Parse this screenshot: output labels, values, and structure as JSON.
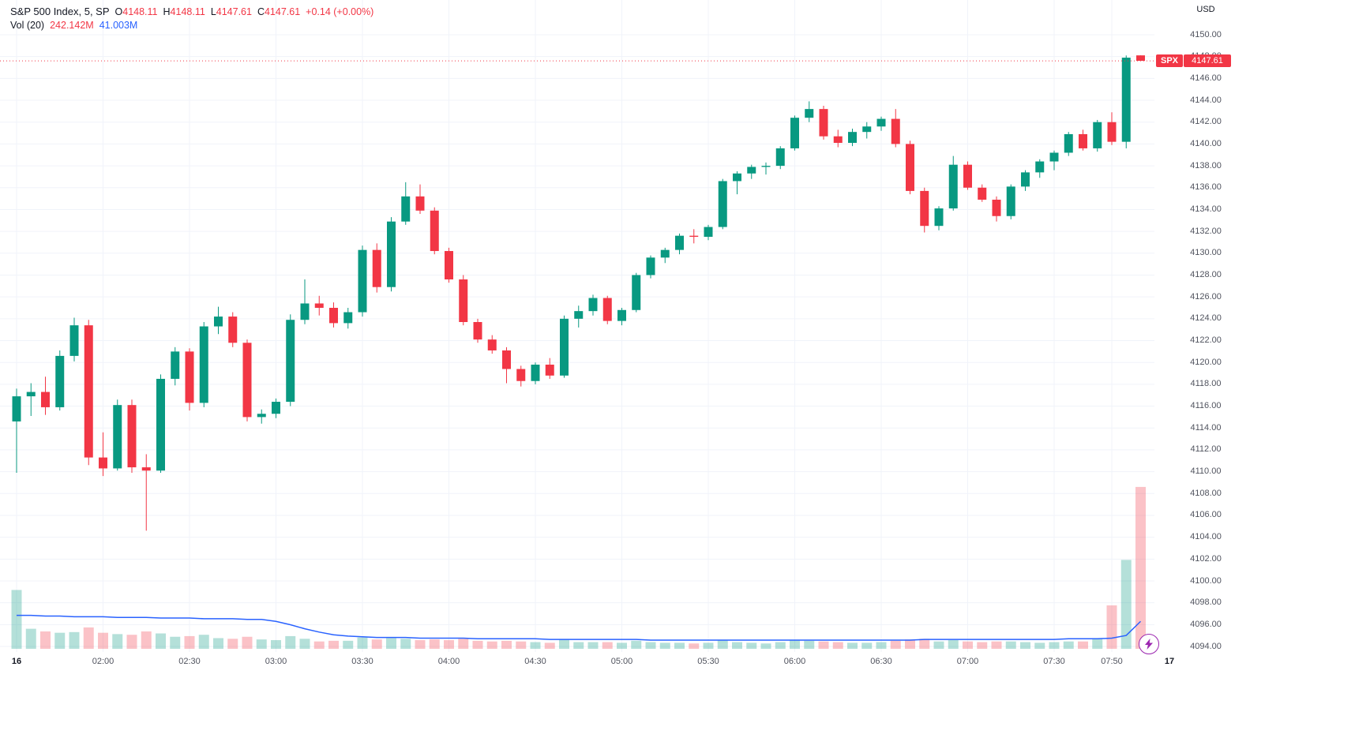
{
  "legend": {
    "title": "S&P 500 Index, 5, SP",
    "open_label": "O",
    "open": "4148.11",
    "high_label": "H",
    "high": "4148.11",
    "low_label": "L",
    "low": "4147.61",
    "close_label": "C",
    "close": "4147.61",
    "change": "+0.14 (+0.00%)",
    "vol_label": "Vol (20)",
    "vol_value": "242.142M",
    "vol_ma_value": "41.003M"
  },
  "badge": {
    "symbol": "SPX",
    "price": "4147.61"
  },
  "axis": {
    "currency": "USD"
  },
  "icons": {
    "flash": "lightning-bolt"
  },
  "colors": {
    "up": "#089981",
    "down": "#f23645",
    "vol_up": "rgba(8,153,129,0.30)",
    "vol_down": "rgba(242,54,69,0.30)",
    "ma_line": "#2962ff",
    "grid": "#f0f3fa",
    "axis_border": "#e0e3eb",
    "badge_bg": "#f23645",
    "accent_purple": "#9c27b0",
    "text_dark": "#131722",
    "text_axis": "#50535e"
  },
  "chart_data": {
    "type": "candlestick",
    "symbol": "S&P 500 Index",
    "interval": "5",
    "exchange": "SP",
    "currency": "USD",
    "last_price": 4147.61,
    "change": "+0.14 (+0.00%)",
    "current_volume_m": 242.142,
    "volume_ma20_current_m": 41.003,
    "y_axis": {
      "min": 4094,
      "max": 4150,
      "step": 2
    },
    "x_tick_labels": [
      "16",
      "02:00",
      "02:30",
      "03:00",
      "03:30",
      "04:00",
      "04:30",
      "05:00",
      "05:30",
      "06:00",
      "06:30",
      "07:00",
      "07:30",
      "07:50",
      "17"
    ],
    "x_ticks": [
      {
        "label": "16",
        "i": 0,
        "day": true
      },
      {
        "label": "02:00",
        "i": 6
      },
      {
        "label": "02:30",
        "i": 12
      },
      {
        "label": "03:00",
        "i": 18
      },
      {
        "label": "03:30",
        "i": 24
      },
      {
        "label": "04:00",
        "i": 30
      },
      {
        "label": "04:30",
        "i": 36
      },
      {
        "label": "05:00",
        "i": 42
      },
      {
        "label": "05:30",
        "i": 48
      },
      {
        "label": "06:00",
        "i": 54
      },
      {
        "label": "06:30",
        "i": 60
      },
      {
        "label": "07:00",
        "i": 66
      },
      {
        "label": "07:30",
        "i": 72
      },
      {
        "label": "07:50",
        "i": 76
      },
      {
        "label": "17",
        "i": 80,
        "day": true
      }
    ],
    "columns": [
      "time",
      "open",
      "high",
      "low",
      "close",
      "volume_m"
    ],
    "candles": [
      [
        "01:30",
        4114.6,
        4117.6,
        4109.9,
        4116.9,
        88
      ],
      [
        "01:35",
        4116.9,
        4118.1,
        4115.1,
        4117.3,
        30
      ],
      [
        "01:40",
        4117.3,
        4118.7,
        4115.2,
        4115.9,
        26
      ],
      [
        "01:45",
        4115.9,
        4121.1,
        4115.6,
        4120.6,
        24
      ],
      [
        "01:50",
        4120.6,
        4124.1,
        4120.1,
        4123.4,
        25
      ],
      [
        "01:55",
        4123.4,
        4123.9,
        4110.6,
        4111.3,
        32
      ],
      [
        "02:00",
        4111.3,
        4113.6,
        4109.6,
        4110.3,
        24
      ],
      [
        "02:05",
        4110.3,
        4116.6,
        4110.1,
        4116.1,
        22
      ],
      [
        "02:10",
        4116.1,
        4116.6,
        4109.9,
        4110.4,
        21
      ],
      [
        "02:15",
        4110.4,
        4111.6,
        4104.6,
        4110.1,
        26
      ],
      [
        "02:20",
        4110.1,
        4118.9,
        4109.9,
        4118.5,
        23
      ],
      [
        "02:25",
        4118.5,
        4121.4,
        4117.9,
        4121.0,
        18
      ],
      [
        "02:30",
        4121.0,
        4121.3,
        4115.6,
        4116.3,
        19
      ],
      [
        "02:35",
        4116.3,
        4123.7,
        4115.9,
        4123.3,
        21
      ],
      [
        "02:40",
        4123.3,
        4125.1,
        4122.6,
        4124.2,
        16
      ],
      [
        "02:45",
        4124.2,
        4124.6,
        4121.4,
        4121.8,
        15
      ],
      [
        "02:50",
        4121.8,
        4122.1,
        4114.6,
        4115.0,
        18
      ],
      [
        "02:55",
        4115.0,
        4115.7,
        4114.4,
        4115.3,
        14
      ],
      [
        "03:00",
        4115.3,
        4116.7,
        4114.9,
        4116.4,
        13
      ],
      [
        "03:05",
        4116.4,
        4124.4,
        4116.0,
        4123.9,
        19
      ],
      [
        "03:10",
        4123.9,
        4127.6,
        4123.5,
        4125.4,
        15
      ],
      [
        "03:15",
        4125.4,
        4126.1,
        4124.3,
        4125.0,
        11
      ],
      [
        "03:20",
        4125.0,
        4125.5,
        4123.2,
        4123.6,
        12
      ],
      [
        "03:25",
        4123.6,
        4125.0,
        4123.1,
        4124.6,
        12
      ],
      [
        "03:30",
        4124.6,
        4130.7,
        4124.2,
        4130.3,
        17
      ],
      [
        "03:35",
        4130.3,
        4130.9,
        4126.4,
        4126.9,
        14
      ],
      [
        "03:40",
        4126.9,
        4133.3,
        4126.5,
        4132.9,
        16
      ],
      [
        "03:45",
        4132.9,
        4136.5,
        4132.6,
        4135.2,
        15
      ],
      [
        "03:50",
        4135.2,
        4136.3,
        4133.6,
        4133.9,
        13
      ],
      [
        "03:55",
        4133.9,
        4134.2,
        4129.9,
        4130.2,
        14
      ],
      [
        "04:00",
        4130.2,
        4130.5,
        4127.3,
        4127.6,
        13
      ],
      [
        "04:05",
        4127.6,
        4128.0,
        4123.4,
        4123.7,
        15
      ],
      [
        "04:10",
        4123.7,
        4124.0,
        4121.8,
        4122.1,
        12
      ],
      [
        "04:15",
        4122.1,
        4122.5,
        4120.8,
        4121.1,
        11
      ],
      [
        "04:20",
        4121.1,
        4121.4,
        4118.1,
        4119.4,
        12
      ],
      [
        "04:25",
        4119.4,
        4119.7,
        4117.8,
        4118.3,
        11
      ],
      [
        "04:30",
        4118.3,
        4120.0,
        4118.0,
        4119.8,
        10
      ],
      [
        "04:35",
        4119.8,
        4120.4,
        4118.5,
        4118.8,
        9
      ],
      [
        "04:40",
        4118.8,
        4124.3,
        4118.6,
        4124.0,
        14
      ],
      [
        "04:45",
        4124.0,
        4125.2,
        4123.2,
        4124.7,
        10
      ],
      [
        "04:50",
        4124.7,
        4126.2,
        4124.3,
        4125.9,
        10
      ],
      [
        "04:55",
        4125.9,
        4126.1,
        4123.5,
        4123.8,
        10
      ],
      [
        "05:00",
        4123.8,
        4125.0,
        4123.4,
        4124.8,
        9
      ],
      [
        "05:05",
        4124.8,
        4128.2,
        4124.6,
        4128.0,
        12
      ],
      [
        "05:10",
        4128.0,
        4129.8,
        4127.7,
        4129.6,
        10
      ],
      [
        "05:15",
        4129.6,
        4130.5,
        4129.1,
        4130.3,
        9
      ],
      [
        "05:20",
        4130.3,
        4131.8,
        4129.9,
        4131.6,
        9
      ],
      [
        "05:25",
        4131.6,
        4132.2,
        4130.9,
        4131.5,
        8
      ],
      [
        "05:30",
        4131.5,
        4132.6,
        4131.2,
        4132.4,
        9
      ],
      [
        "05:35",
        4132.4,
        4136.8,
        4132.2,
        4136.6,
        13
      ],
      [
        "05:40",
        4136.6,
        4137.5,
        4135.4,
        4137.3,
        10
      ],
      [
        "05:45",
        4137.3,
        4138.1,
        4136.8,
        4137.9,
        9
      ],
      [
        "05:50",
        4137.9,
        4138.3,
        4137.2,
        4138.0,
        8
      ],
      [
        "05:55",
        4138.0,
        4139.8,
        4137.7,
        4139.6,
        10
      ],
      [
        "06:00",
        4139.6,
        4142.6,
        4139.4,
        4142.4,
        13
      ],
      [
        "06:05",
        4142.4,
        4143.9,
        4142.0,
        4143.2,
        12
      ],
      [
        "06:10",
        4143.2,
        4143.5,
        4140.4,
        4140.7,
        11
      ],
      [
        "06:15",
        4140.7,
        4141.3,
        4139.7,
        4140.1,
        10
      ],
      [
        "06:20",
        4140.1,
        4141.4,
        4139.8,
        4141.1,
        9
      ],
      [
        "06:25",
        4141.1,
        4142.0,
        4140.5,
        4141.6,
        9
      ],
      [
        "06:30",
        4141.6,
        4142.5,
        4141.2,
        4142.3,
        10
      ],
      [
        "06:35",
        4142.3,
        4143.2,
        4139.7,
        4140.0,
        12
      ],
      [
        "06:40",
        4140.0,
        4140.3,
        4135.4,
        4135.7,
        14
      ],
      [
        "06:45",
        4135.7,
        4136.0,
        4131.9,
        4132.5,
        15
      ],
      [
        "06:50",
        4132.5,
        4134.3,
        4132.1,
        4134.1,
        11
      ],
      [
        "06:55",
        4134.1,
        4138.9,
        4133.9,
        4138.1,
        13
      ],
      [
        "07:00",
        4138.1,
        4138.4,
        4135.8,
        4136.0,
        11
      ],
      [
        "07:05",
        4136.0,
        4136.3,
        4134.7,
        4134.9,
        10
      ],
      [
        "07:10",
        4134.9,
        4135.2,
        4132.9,
        4133.4,
        11
      ],
      [
        "07:15",
        4133.4,
        4136.3,
        4133.1,
        4136.1,
        11
      ],
      [
        "07:20",
        4136.1,
        4137.6,
        4135.7,
        4137.4,
        10
      ],
      [
        "07:25",
        4137.4,
        4138.6,
        4136.9,
        4138.4,
        9
      ],
      [
        "07:30",
        4138.4,
        4139.4,
        4137.6,
        4139.2,
        10
      ],
      [
        "07:35",
        4139.2,
        4141.1,
        4138.9,
        4140.9,
        11
      ],
      [
        "07:40",
        4140.9,
        4141.3,
        4139.4,
        4139.6,
        11
      ],
      [
        "07:45",
        4139.6,
        4142.2,
        4139.3,
        4142.0,
        16
      ],
      [
        "07:50",
        4142.0,
        4142.9,
        4139.9,
        4140.2,
        65
      ],
      [
        "07:55",
        4140.2,
        4148.1,
        4139.6,
        4147.9,
        133
      ],
      [
        "08:00",
        4148.11,
        4148.11,
        4147.61,
        4147.61,
        242.142
      ]
    ],
    "vol_ma20_m": [
      50,
      50,
      49,
      49,
      48,
      48,
      48,
      47,
      47,
      47,
      46,
      46,
      46,
      45,
      45,
      45,
      44,
      44,
      41,
      36,
      30,
      25,
      21,
      19,
      18,
      17,
      17,
      17,
      16,
      16,
      16,
      16,
      15,
      15,
      15,
      15,
      15,
      14,
      14,
      14,
      14,
      14,
      14,
      14,
      13,
      13,
      13,
      13,
      13,
      13,
      13,
      13,
      13,
      13,
      13,
      13,
      13,
      13,
      13,
      13,
      13,
      13,
      13,
      14,
      14,
      14,
      14,
      14,
      14,
      14,
      14,
      14,
      14,
      15,
      15,
      15,
      16,
      20,
      41.003
    ]
  }
}
